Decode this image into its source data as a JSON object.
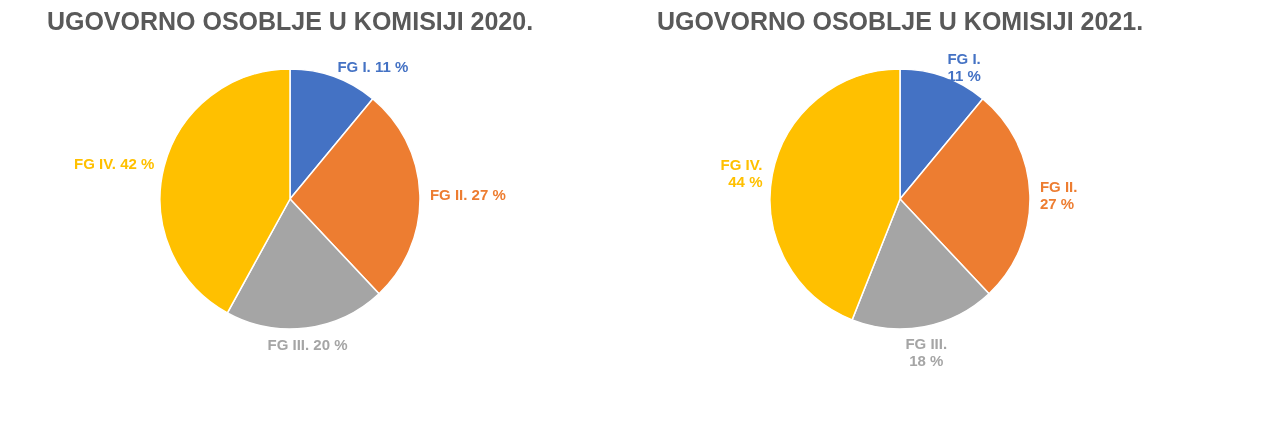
{
  "chart_data": [
    {
      "type": "pie",
      "title": "UGOVORNO OSOBLJE U KOMISIJI 2020.",
      "categories": [
        "FG I.",
        "FG II.",
        "FG III.",
        "FG IV."
      ],
      "values": [
        11,
        27,
        20,
        42
      ],
      "value_labels": [
        "11 %",
        "27 %",
        "20 %",
        "42 %"
      ],
      "colors": [
        "#4472c4",
        "#ed7d31",
        "#a5a5a5",
        "#ffc000"
      ],
      "legend": false
    },
    {
      "type": "pie",
      "title": "UGOVORNO OSOBLJE U KOMISIJI 2021.",
      "categories": [
        "FG I.",
        "FG II.",
        "FG III.",
        "FG IV."
      ],
      "values": [
        11,
        27,
        18,
        44
      ],
      "value_labels": [
        "11 %",
        "27 %",
        "18 %",
        "44 %"
      ],
      "colors": [
        "#4472c4",
        "#ed7d31",
        "#a5a5a5",
        "#ffc000"
      ],
      "legend": false
    }
  ]
}
